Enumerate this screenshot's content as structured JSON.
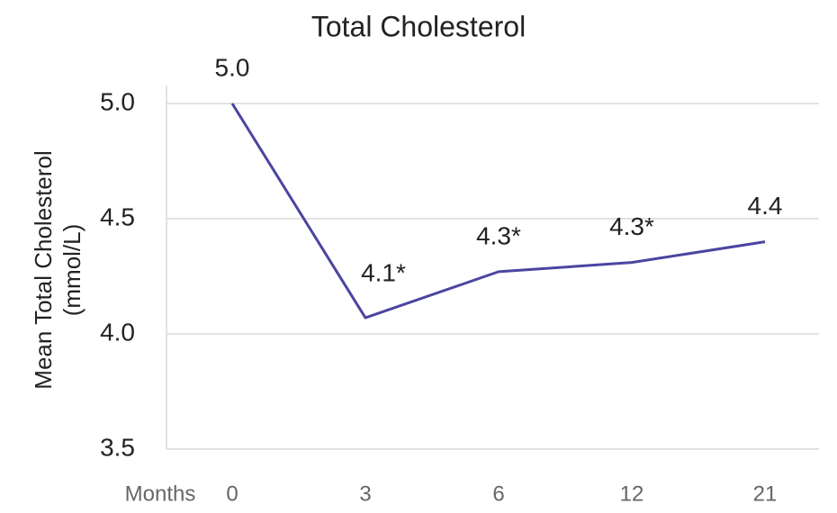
{
  "chart_data": {
    "type": "line",
    "title": "Total Cholesterol",
    "ylabel": [
      "Mean Total Cholesterol",
      "(mmol/L)"
    ],
    "xlabel": "Months",
    "categories": [
      "0",
      "3",
      "6",
      "12",
      "21"
    ],
    "series": [
      {
        "name": "Total Cholesterol",
        "color": "#4b45a0",
        "values": [
          5.0,
          4.07,
          4.27,
          4.31,
          4.4
        ],
        "value_labels": [
          "5.0",
          "4.1*",
          "4.3*",
          "4.3*",
          "4.4"
        ]
      }
    ],
    "ylim": [
      3.5,
      5.0
    ],
    "yticks": [
      {
        "value": 3.5,
        "label": "3.5"
      },
      4.5,
      {
        "value": 4.0,
        "label": "4.0"
      },
      {
        "value": 5.0,
        "label": "5.0"
      }
    ],
    "grid": true
  }
}
